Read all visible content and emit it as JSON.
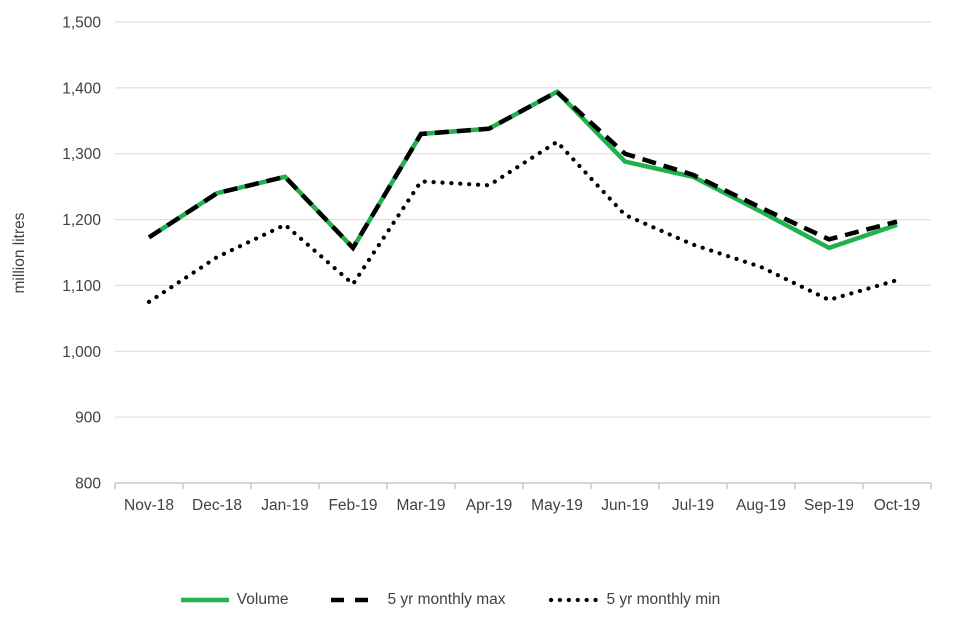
{
  "chart_data": {
    "type": "line",
    "title": "",
    "xlabel": "",
    "ylabel": "million litres",
    "categories": [
      "Nov-18",
      "Dec-18",
      "Jan-19",
      "Feb-19",
      "Mar-19",
      "Apr-19",
      "May-19",
      "Jun-19",
      "Jul-19",
      "Aug-19",
      "Sep-19",
      "Oct-19"
    ],
    "series": [
      {
        "name": "Volume",
        "color": "#21B14C",
        "line_style": "solid",
        "values": [
          1173,
          1240,
          1265,
          1157,
          1330,
          1338,
          1394,
          1288,
          1265,
          1212,
          1157,
          1192
        ]
      },
      {
        "name": "5 yr monthly max",
        "color": "#000000",
        "line_style": "dashed",
        "values": [
          1173,
          1240,
          1265,
          1157,
          1330,
          1338,
          1394,
          1300,
          1268,
          1218,
          1170,
          1197
        ]
      },
      {
        "name": "5 yr monthly min",
        "color": "#000000",
        "line_style": "dotted",
        "values": [
          1075,
          1143,
          1192,
          1102,
          1258,
          1252,
          1318,
          1207,
          1162,
          1128,
          1078,
          1108
        ]
      }
    ],
    "ylim": [
      800,
      1500
    ],
    "ytick_step": 100,
    "ytick_labels": [
      "800",
      "900",
      "1,000",
      "1,100",
      "1,200",
      "1,300",
      "1,400",
      "1,500"
    ],
    "grid": true,
    "legend_position": "bottom",
    "colors": {
      "accent_green": "#21B14C",
      "gridline": "#D9D9D9",
      "axis": "#BFBFBF",
      "text": "#404040"
    }
  }
}
